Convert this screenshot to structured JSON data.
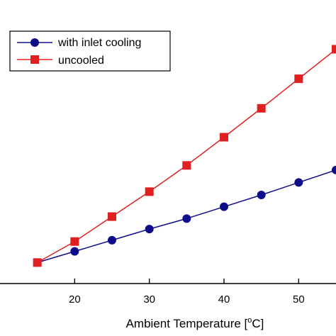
{
  "chart_data": {
    "type": "line",
    "xlabel": {
      "text": "Ambient Temperature [",
      "superscript": "o",
      "unit": "C]"
    },
    "ylabel": "",
    "xlim": [
      10,
      55
    ],
    "ylim": [
      -0.32,
      4.0
    ],
    "xticks": [
      20,
      30,
      40,
      50
    ],
    "xtick_labels": [
      "20",
      "30",
      "40",
      "50"
    ],
    "legend_position": "top-left",
    "series": [
      {
        "name": "with inlet cooling",
        "color": "#0d0d8a",
        "marker": "circle",
        "x": [
          15,
          20,
          25,
          30,
          35,
          40,
          45,
          50,
          55
        ],
        "y": [
          0.0,
          0.17,
          0.34,
          0.51,
          0.67,
          0.85,
          1.03,
          1.22,
          1.41
        ]
      },
      {
        "name": "uncooled",
        "color": "#e02020",
        "marker": "square",
        "x": [
          15,
          20,
          25,
          30,
          35,
          40,
          45,
          50,
          55
        ],
        "y": [
          0.0,
          0.32,
          0.7,
          1.08,
          1.48,
          1.91,
          2.35,
          2.8,
          3.25
        ]
      }
    ]
  }
}
